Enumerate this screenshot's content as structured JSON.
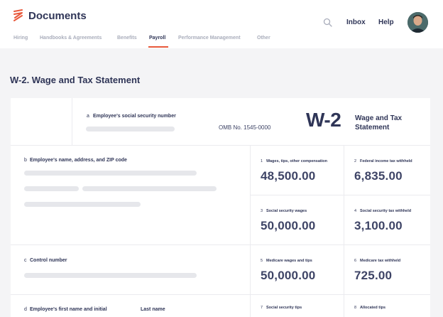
{
  "header": {
    "app_title": "Documents",
    "inbox_label": "Inbox",
    "help_label": "Help",
    "accent_color": "#e8593c"
  },
  "tabs": [
    {
      "label": "Hiring"
    },
    {
      "label": "Handbooks & Agreements"
    },
    {
      "label": "Benefits"
    },
    {
      "label": "Payroll"
    },
    {
      "label": "Performance Management"
    },
    {
      "label": "Other"
    }
  ],
  "page": {
    "title": "W-2. Wage and Tax Statement"
  },
  "form": {
    "ssn_label": "Employee's social security number",
    "ssn_letter": "a",
    "omb_text": "OMB No. 1545-0000",
    "form_code": "W-2",
    "form_name_line1": "Wage and Tax",
    "form_name_line2": "Statement",
    "employee_address_letter": "b",
    "employee_address_label": "Employee's name, address, and ZIP code",
    "control_letter": "c",
    "control_label": "Control number",
    "first_name_letter": "d",
    "first_name_label": "Employee's first name and initial",
    "last_name_label": "Last name",
    "boxes": [
      {
        "num": "1",
        "label": "Wages, tips, other compensation",
        "value": "48,500.00"
      },
      {
        "num": "2",
        "label": "Federal income tax withheld",
        "value": "6,835.00"
      },
      {
        "num": "3",
        "label": "Social security wages",
        "value": "50,000.00"
      },
      {
        "num": "4",
        "label": "Social security tax withheld",
        "value": "3,100.00"
      },
      {
        "num": "5",
        "label": "Medicare wages and tips",
        "value": "50,000.00"
      },
      {
        "num": "6",
        "label": "Medicare tax withheld",
        "value": "725.00"
      },
      {
        "num": "7",
        "label": "Social security tips",
        "value": ""
      },
      {
        "num": "8",
        "label": "Allocated tips",
        "value": ""
      }
    ]
  }
}
